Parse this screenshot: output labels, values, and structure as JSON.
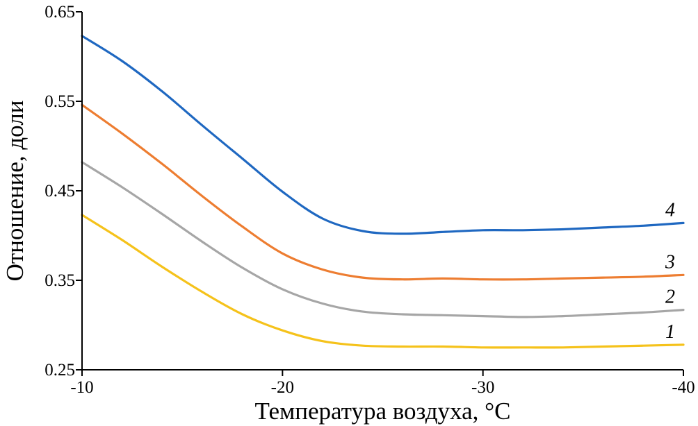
{
  "chart_data": {
    "type": "line",
    "xlabel": "Температура воздуха, °С",
    "ylabel": "Отношение, доли",
    "xlim": [
      -10,
      -40
    ],
    "ylim": [
      0.25,
      0.65
    ],
    "x_ticks": [
      "-10",
      "-20",
      "-30",
      "-40"
    ],
    "y_ticks": [
      "0.25",
      "0.35",
      "0.45",
      "0.55",
      "0.65"
    ],
    "grid": false,
    "series": [
      {
        "name": "1",
        "color": "#F5C21B",
        "x": [
          -10,
          -12,
          -14,
          -16,
          -18,
          -20,
          -22,
          -24,
          -26,
          -28,
          -30,
          -32,
          -34,
          -36,
          -38,
          -40
        ],
        "y": [
          0.423,
          0.395,
          0.365,
          0.337,
          0.312,
          0.294,
          0.282,
          0.277,
          0.276,
          0.276,
          0.275,
          0.275,
          0.275,
          0.276,
          0.277,
          0.278
        ]
      },
      {
        "name": "2",
        "color": "#A6A6A6",
        "x": [
          -10,
          -12,
          -14,
          -16,
          -18,
          -20,
          -22,
          -24,
          -26,
          -28,
          -30,
          -32,
          -34,
          -36,
          -38,
          -40
        ],
        "y": [
          0.482,
          0.454,
          0.424,
          0.393,
          0.364,
          0.34,
          0.324,
          0.315,
          0.312,
          0.311,
          0.31,
          0.309,
          0.31,
          0.312,
          0.314,
          0.317
        ]
      },
      {
        "name": "3",
        "color": "#ED7D31",
        "x": [
          -10,
          -12,
          -14,
          -16,
          -18,
          -20,
          -22,
          -24,
          -26,
          -28,
          -30,
          -32,
          -34,
          -36,
          -38,
          -40
        ],
        "y": [
          0.546,
          0.514,
          0.48,
          0.444,
          0.41,
          0.38,
          0.362,
          0.353,
          0.351,
          0.352,
          0.351,
          0.351,
          0.352,
          0.353,
          0.354,
          0.356
        ]
      },
      {
        "name": "4",
        "color": "#1F68C1",
        "x": [
          -10,
          -12,
          -14,
          -16,
          -18,
          -20,
          -22,
          -24,
          -26,
          -28,
          -30,
          -32,
          -34,
          -36,
          -38,
          -40
        ],
        "y": [
          0.623,
          0.595,
          0.561,
          0.523,
          0.486,
          0.449,
          0.419,
          0.405,
          0.402,
          0.404,
          0.406,
          0.406,
          0.407,
          0.409,
          0.411,
          0.414
        ]
      }
    ]
  }
}
